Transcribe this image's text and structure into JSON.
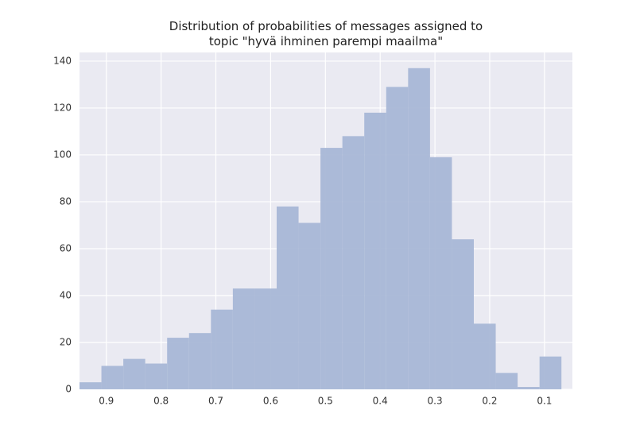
{
  "chart_data": {
    "type": "histogram",
    "title": "Distribution of probabilities of messages assigned to\ntopic \"hyvä ihminen parempi maailma\"",
    "bins": [
      0.949,
      0.909,
      0.869,
      0.829,
      0.789,
      0.749,
      0.709,
      0.669,
      0.629,
      0.589,
      0.549,
      0.509,
      0.469,
      0.429,
      0.389,
      0.349,
      0.309,
      0.269,
      0.229,
      0.189,
      0.149,
      0.109,
      0.069
    ],
    "values": [
      3,
      10,
      13,
      11,
      22,
      24,
      34,
      43,
      43,
      78,
      71,
      103,
      108,
      118,
      129,
      137,
      99,
      64,
      28,
      7,
      1,
      14
    ],
    "color": "#a8b7d6",
    "xlim": [
      0.949,
      0.049
    ],
    "xticks": [
      0.9,
      0.8,
      0.7,
      0.6,
      0.5,
      0.4,
      0.3,
      0.2,
      0.1
    ],
    "ylim": [
      0,
      143.7
    ],
    "yticks": [
      0,
      20,
      40,
      60,
      80,
      100,
      120,
      140
    ],
    "grid": true
  }
}
